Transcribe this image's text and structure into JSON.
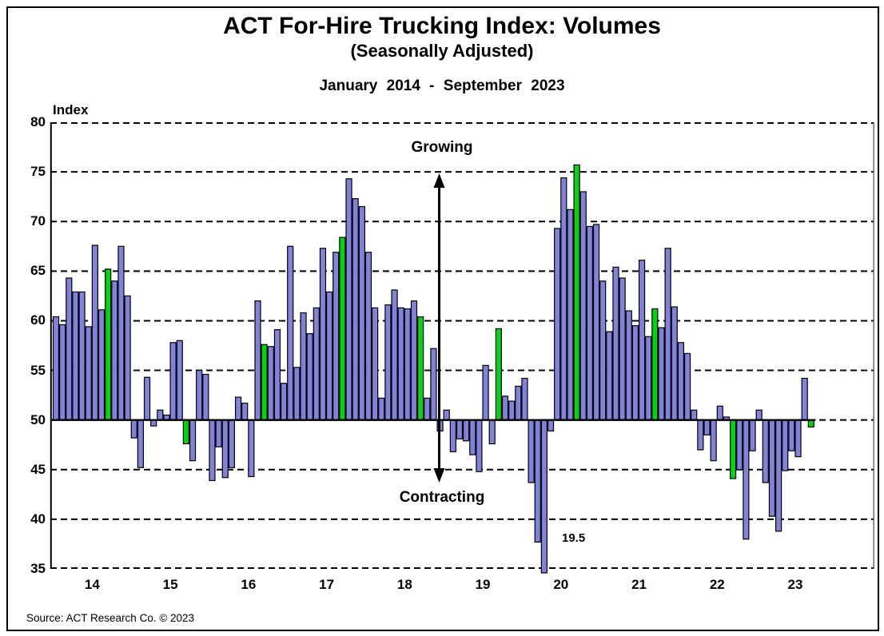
{
  "figure": {
    "title": "ACT For-Hire Trucking Index: Volumes",
    "subtitle": "(Seasonally Adjusted)",
    "date_range": "January 2014 - September 2023",
    "y_axis_label": "Index",
    "source": "Source: ACT Research Co. © 2023"
  },
  "annotations": {
    "growing_label": "Growing",
    "contracting_label": "Contracting",
    "april_2020_label": "19.5"
  },
  "colors": {
    "bar_fill": "#8182da",
    "bar_outline": "#000000",
    "september_bar_fill": "#00d511",
    "gridline": "#000000",
    "axis_left_border": "#000000",
    "axis_right_border": "#777777",
    "background": "#ffffff"
  },
  "chart_data": {
    "type": "bar",
    "title": "ACT For-Hire Trucking Index: Volumes (Seasonally Adjusted)",
    "period": "January 2014 - September 2023",
    "ylabel": "Index",
    "ylim": [
      35,
      80
    ],
    "baseline": 50,
    "grid": "dashed horizontal",
    "y_ticks": [
      80,
      75,
      70,
      65,
      60,
      55,
      50,
      45,
      40,
      35
    ],
    "x_tick_years": [
      "14",
      "15",
      "16",
      "17",
      "18",
      "19",
      "20",
      "21",
      "22",
      "23"
    ],
    "highlight_rule": "September of each year drawn in green",
    "clip_note": "April 2020 value 19.5 is clipped at the 35 axis floor and labeled 19.5",
    "series": [
      {
        "year": "2014",
        "monthly_values": [
          60.4,
          59.6,
          64.3,
          62.9,
          62.9,
          59.4,
          67.6,
          61.1,
          65.2,
          64.0,
          67.5,
          62.5
        ]
      },
      {
        "year": "2015",
        "monthly_values": [
          48.2,
          45.2,
          54.3,
          49.4,
          51.0,
          50.5,
          57.8,
          58.0,
          47.6,
          45.9,
          55.0,
          54.6
        ]
      },
      {
        "year": "2016",
        "monthly_values": [
          43.9,
          47.3,
          44.2,
          45.2,
          52.3,
          51.7,
          44.3,
          62.0,
          57.6,
          57.4,
          59.1,
          53.7
        ]
      },
      {
        "year": "2017",
        "monthly_values": [
          67.5,
          55.3,
          60.8,
          58.7,
          61.3,
          67.3,
          62.9,
          66.9,
          68.4,
          74.3,
          72.3,
          71.5
        ]
      },
      {
        "year": "2018",
        "monthly_values": [
          66.9,
          61.3,
          52.2,
          61.6,
          63.1,
          61.3,
          61.2,
          62.0,
          60.4,
          52.2,
          57.2,
          48.9
        ]
      },
      {
        "year": "2019",
        "monthly_values": [
          51.0,
          46.8,
          48.1,
          47.9,
          46.5,
          44.8,
          55.5,
          47.6,
          59.2,
          52.4,
          51.9,
          53.4
        ]
      },
      {
        "year": "2020",
        "monthly_values": [
          54.2,
          43.7,
          37.7,
          19.5,
          48.9,
          69.3,
          74.4,
          71.2,
          75.7,
          73.0,
          69.5,
          69.7
        ]
      },
      {
        "year": "2021",
        "monthly_values": [
          64.0,
          58.9,
          65.4,
          64.3,
          61.0,
          59.5,
          66.1,
          58.4,
          61.2,
          59.3,
          67.3,
          61.4
        ]
      },
      {
        "year": "2022",
        "monthly_values": [
          57.8,
          56.7,
          51.0,
          47.0,
          48.5,
          45.9,
          51.4,
          50.3,
          44.1,
          45.0,
          38.0,
          46.9
        ]
      },
      {
        "year": "2023",
        "monthly_values": [
          51.0,
          43.7,
          40.3,
          38.8,
          44.9,
          46.9,
          46.3,
          54.2,
          49.3
        ]
      }
    ]
  }
}
